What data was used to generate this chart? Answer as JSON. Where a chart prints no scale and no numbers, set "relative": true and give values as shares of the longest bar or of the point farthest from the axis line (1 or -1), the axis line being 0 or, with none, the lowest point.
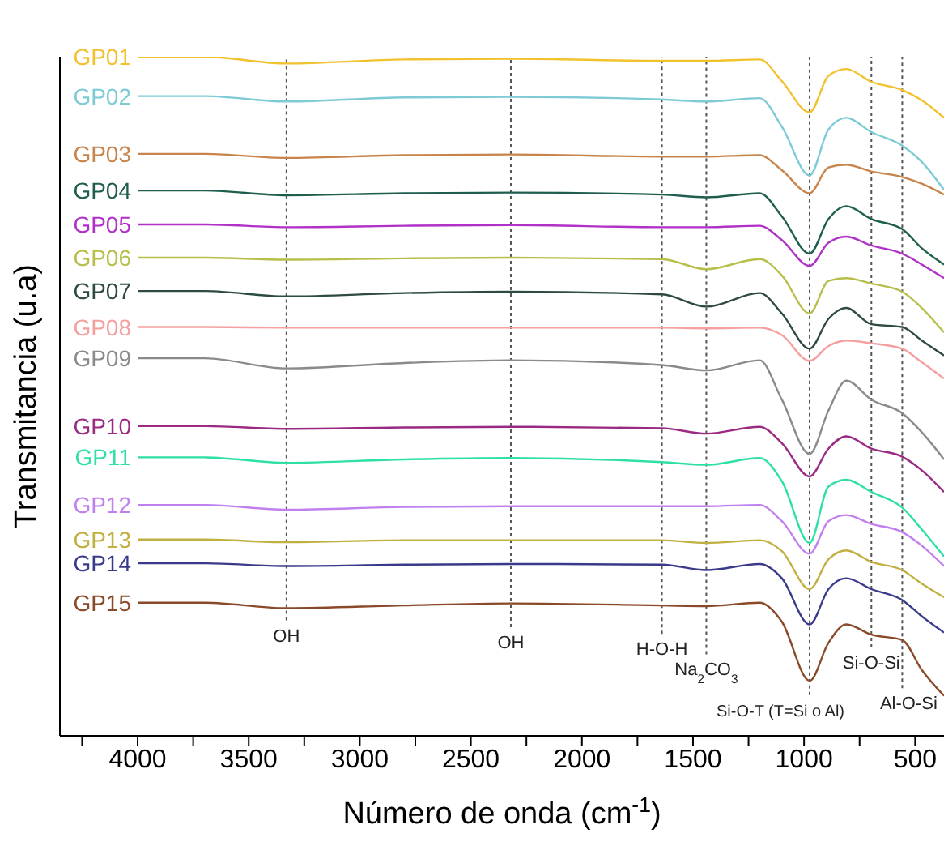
{
  "chart_data": {
    "type": "line",
    "relative": true,
    "xlabel": "Número de onda (cm$^{-1}$)",
    "ylabel": "Transmitancia (u.a)",
    "legend": false,
    "grid": false,
    "line_style": "solid",
    "marker": "none",
    "x": [
      4000,
      3700,
      3330,
      2800,
      2320,
      1640,
      1440,
      1200,
      1100,
      975,
      890,
      810,
      697,
      558,
      470,
      370
    ],
    "xlim": [
      4350,
      370
    ],
    "xticks": [
      {
        "value": 4250,
        "label": null
      },
      4000,
      {
        "value": 3750,
        "label": null
      },
      3500,
      {
        "value": 3250,
        "label": null
      },
      3000,
      {
        "value": 2750,
        "label": null
      },
      2500,
      {
        "value": 2250,
        "label": null
      },
      2000,
      {
        "value": 1750,
        "label": null
      },
      1500,
      {
        "value": 1250,
        "label": null
      },
      1000,
      {
        "value": 750,
        "label": null
      },
      500
    ],
    "series": [
      {
        "name": "GP01",
        "color": "#f2c12e",
        "values": [
          1.0,
          1.0,
          0.99,
          0.996,
          0.997,
          0.994,
          0.994,
          0.996,
          0.964,
          0.918,
          0.972,
          0.982,
          0.963,
          0.951,
          0.936,
          0.91
        ]
      },
      {
        "name": "GP02",
        "color": "#7ecbd6",
        "values": [
          0.942,
          0.942,
          0.934,
          0.94,
          0.941,
          0.937,
          0.934,
          0.939,
          0.897,
          0.825,
          0.893,
          0.91,
          0.889,
          0.869,
          0.845,
          0.804
        ]
      },
      {
        "name": "GP03",
        "color": "#c8844a",
        "values": [
          0.857,
          0.857,
          0.851,
          0.855,
          0.856,
          0.853,
          0.853,
          0.855,
          0.833,
          0.799,
          0.837,
          0.841,
          0.831,
          0.823,
          0.813,
          0.797
        ]
      },
      {
        "name": "GP04",
        "color": "#1f5e4e",
        "values": [
          0.803,
          0.803,
          0.796,
          0.799,
          0.8,
          0.797,
          0.793,
          0.799,
          0.765,
          0.71,
          0.761,
          0.78,
          0.761,
          0.746,
          0.718,
          0.694
        ]
      },
      {
        "name": "GP05",
        "color": "#b030c8",
        "values": [
          0.753,
          0.753,
          0.749,
          0.751,
          0.752,
          0.749,
          0.749,
          0.751,
          0.73,
          0.692,
          0.726,
          0.735,
          0.722,
          0.71,
          0.694,
          0.674
        ]
      },
      {
        "name": "GP06",
        "color": "#b8be4a",
        "values": [
          0.704,
          0.704,
          0.701,
          0.703,
          0.704,
          0.702,
          0.687,
          0.702,
          0.678,
          0.622,
          0.67,
          0.674,
          0.666,
          0.654,
          0.63,
          0.594
        ]
      },
      {
        "name": "GP07",
        "color": "#2e4a44",
        "values": [
          0.655,
          0.655,
          0.647,
          0.652,
          0.654,
          0.65,
          0.632,
          0.652,
          0.622,
          0.57,
          0.614,
          0.63,
          0.606,
          0.602,
          0.582,
          0.56
        ]
      },
      {
        "name": "GP08",
        "color": "#f4a0a0",
        "values": [
          0.602,
          0.602,
          0.601,
          0.601,
          0.601,
          0.601,
          0.6,
          0.601,
          0.59,
          0.552,
          0.574,
          0.582,
          0.578,
          0.57,
          0.55,
          0.526
        ]
      },
      {
        "name": "GP09",
        "color": "#8a8a8a",
        "values": [
          0.556,
          0.556,
          0.541,
          0.549,
          0.553,
          0.546,
          0.538,
          0.553,
          0.495,
          0.415,
          0.479,
          0.523,
          0.495,
          0.475,
          0.447,
          0.407
        ]
      },
      {
        "name": "GP10",
        "color": "#9a2a82",
        "values": [
          0.456,
          0.456,
          0.452,
          0.454,
          0.455,
          0.453,
          0.445,
          0.455,
          0.431,
          0.382,
          0.423,
          0.441,
          0.423,
          0.411,
          0.391,
          0.359
        ]
      },
      {
        "name": "GP11",
        "color": "#2ee0a6",
        "values": [
          0.41,
          0.41,
          0.402,
          0.407,
          0.409,
          0.403,
          0.399,
          0.409,
          0.375,
          0.284,
          0.367,
          0.377,
          0.359,
          0.336,
          0.304,
          0.264
        ]
      },
      {
        "name": "GP12",
        "color": "#c080f0",
        "values": [
          0.34,
          0.34,
          0.333,
          0.337,
          0.338,
          0.338,
          0.338,
          0.34,
          0.316,
          0.268,
          0.316,
          0.325,
          0.312,
          0.3,
          0.28,
          0.25
        ]
      },
      {
        "name": "GP13",
        "color": "#c0b040",
        "values": [
          0.289,
          0.289,
          0.285,
          0.288,
          0.288,
          0.288,
          0.284,
          0.288,
          0.272,
          0.216,
          0.26,
          0.273,
          0.256,
          0.244,
          0.224,
          0.204
        ]
      },
      {
        "name": "GP14",
        "color": "#3a3a8a",
        "values": [
          0.254,
          0.254,
          0.25,
          0.252,
          0.253,
          0.252,
          0.244,
          0.253,
          0.232,
          0.164,
          0.216,
          0.232,
          0.216,
          0.2,
          0.176,
          0.152
        ]
      },
      {
        "name": "GP15",
        "color": "#8a4a2a",
        "values": [
          0.196,
          0.196,
          0.188,
          0.192,
          0.195,
          0.192,
          0.191,
          0.196,
          0.168,
          0.081,
          0.137,
          0.164,
          0.149,
          0.141,
          0.097,
          0.059
        ]
      }
    ],
    "ref_lines": [
      {
        "axis": "x",
        "value": 3330,
        "label": "OH",
        "color": "#555555",
        "line_style": "dotted"
      },
      {
        "axis": "x",
        "value": 2320,
        "label": "OH",
        "color": "#555555",
        "line_style": "dotted"
      },
      {
        "axis": "x",
        "value": 1640,
        "label": "H-O-H",
        "color": "#555555",
        "line_style": "dotted"
      },
      {
        "axis": "x",
        "value": 1440,
        "label": "Na$_{2}$CO$_{3}$",
        "color": "#555555",
        "line_style": "dotted"
      },
      {
        "axis": "x",
        "value": 975,
        "label": "Si-O-T (T=Si o Al)",
        "color": "#555555",
        "line_style": "dotted"
      },
      {
        "axis": "x",
        "value": 697,
        "label": "Si-O-Si",
        "color": "#555555",
        "line_style": "dotted"
      },
      {
        "axis": "x",
        "value": 558,
        "label": "Al-O-Si",
        "color": "#555555",
        "line_style": "dotted"
      }
    ]
  }
}
